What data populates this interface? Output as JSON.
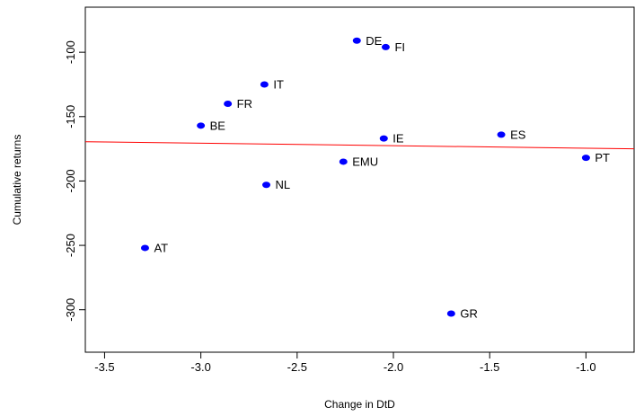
{
  "chart_data": {
    "type": "scatter",
    "title": "",
    "xlabel": "Change in DtD",
    "ylabel": "Cumulative returns",
    "xlim": [
      -3.6,
      -0.75
    ],
    "ylim": [
      -333,
      -65
    ],
    "xticks": [
      "-3.5",
      "-3.0",
      "-2.5",
      "-2.0",
      "-1.5",
      "-1.0"
    ],
    "xtick_values": [
      -3.5,
      -3.0,
      -2.5,
      -2.0,
      -1.5,
      -1.0
    ],
    "yticks": [
      "-100",
      "-150",
      "-200",
      "-250",
      "-300"
    ],
    "ytick_values": [
      -100,
      -150,
      -200,
      -250,
      -300
    ],
    "grid": false,
    "point_color": "#0000ff",
    "fit_line_color": "#ff0000",
    "points": [
      {
        "label": "DE",
        "x": -2.19,
        "y": -91
      },
      {
        "label": "FI",
        "x": -2.04,
        "y": -96
      },
      {
        "label": "IT",
        "x": -2.67,
        "y": -125
      },
      {
        "label": "FR",
        "x": -2.86,
        "y": -140
      },
      {
        "label": "BE",
        "x": -3.0,
        "y": -157
      },
      {
        "label": "IE",
        "x": -2.05,
        "y": -167
      },
      {
        "label": "ES",
        "x": -1.44,
        "y": -164
      },
      {
        "label": "PT",
        "x": -1.0,
        "y": -182
      },
      {
        "label": "EMU",
        "x": -2.26,
        "y": -185
      },
      {
        "label": "NL",
        "x": -2.66,
        "y": -203
      },
      {
        "label": "AT",
        "x": -3.29,
        "y": -252
      },
      {
        "label": "GR",
        "x": -1.7,
        "y": -303
      }
    ],
    "fit_line": {
      "x": [
        -3.6,
        -0.75
      ],
      "y": [
        -169.5,
        -175
      ]
    }
  }
}
